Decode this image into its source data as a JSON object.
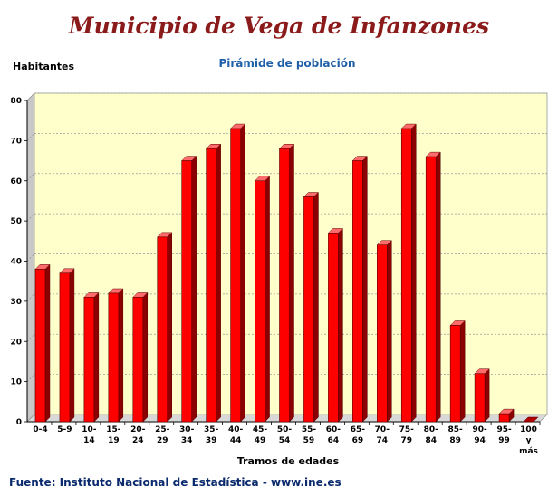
{
  "header": {
    "title": "Municipio de Vega de Infanzones",
    "subtitle": "Pirámide de población"
  },
  "footer": {
    "source": "Fuente: Instituto Nacional de Estadística - www.ine.es"
  },
  "colors": {
    "bar": "#ff0000",
    "bar_side": "#8b0000",
    "plot_bg": "#ffffcc",
    "title": "#8b1a1a",
    "subtitle": "#1f5fa8"
  },
  "chart_data": {
    "type": "bar",
    "title": "Pirámide de población",
    "xlabel": "Tramos de edades",
    "ylabel": "Habitantes",
    "ylim": [
      0,
      80
    ],
    "yticks": [
      0,
      10,
      20,
      30,
      40,
      50,
      60,
      70,
      80
    ],
    "grid": true,
    "categories": [
      [
        "0-4"
      ],
      [
        "5-9"
      ],
      [
        "10-",
        "14"
      ],
      [
        "15-",
        "19"
      ],
      [
        "20-",
        "24"
      ],
      [
        "25-",
        "29"
      ],
      [
        "30-",
        "34"
      ],
      [
        "35-",
        "39"
      ],
      [
        "40-",
        "44"
      ],
      [
        "45-",
        "49"
      ],
      [
        "50-",
        "54"
      ],
      [
        "55-",
        "59"
      ],
      [
        "60-",
        "64"
      ],
      [
        "65-",
        "69"
      ],
      [
        "70-",
        "74"
      ],
      [
        "75-",
        "79"
      ],
      [
        "80-",
        "84"
      ],
      [
        "85-",
        "89"
      ],
      [
        "90-",
        "94"
      ],
      [
        "95-",
        "99"
      ],
      [
        "100",
        "y",
        "más"
      ]
    ],
    "values": [
      38,
      37,
      31,
      32,
      31,
      46,
      65,
      68,
      73,
      60,
      68,
      56,
      47,
      65,
      44,
      73,
      66,
      24,
      12,
      2,
      0
    ]
  }
}
